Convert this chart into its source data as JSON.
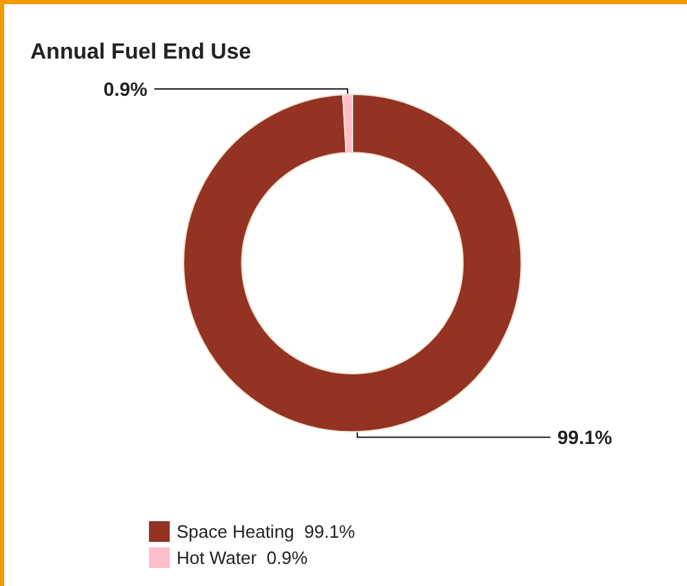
{
  "chart_data": {
    "type": "donut",
    "title": "Annual Fuel End Use",
    "categories": [
      "Space Heating",
      "Hot Water"
    ],
    "values": [
      99.1,
      0.9
    ],
    "colors": [
      "#943223",
      "#ffbccb"
    ],
    "value_labels": [
      "99.1%",
      "0.9%"
    ],
    "legend": "bottom left"
  }
}
